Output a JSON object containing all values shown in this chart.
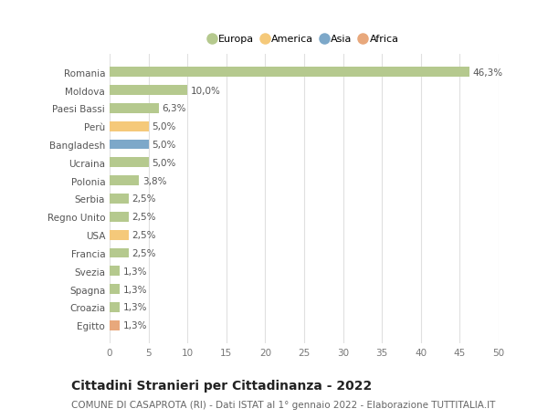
{
  "countries": [
    "Romania",
    "Moldova",
    "Paesi Bassi",
    "Perù",
    "Bangladesh",
    "Ucraina",
    "Polonia",
    "Serbia",
    "Regno Unito",
    "USA",
    "Francia",
    "Svezia",
    "Spagna",
    "Croazia",
    "Egitto"
  ],
  "values": [
    46.3,
    10.0,
    6.3,
    5.0,
    5.0,
    5.0,
    3.8,
    2.5,
    2.5,
    2.5,
    2.5,
    1.3,
    1.3,
    1.3,
    1.3
  ],
  "labels": [
    "46,3%",
    "10,0%",
    "6,3%",
    "5,0%",
    "5,0%",
    "5,0%",
    "3,8%",
    "2,5%",
    "2,5%",
    "2,5%",
    "2,5%",
    "1,3%",
    "1,3%",
    "1,3%",
    "1,3%"
  ],
  "colors": [
    "#b5c98e",
    "#b5c98e",
    "#b5c98e",
    "#f5c97a",
    "#7da8c9",
    "#b5c98e",
    "#b5c98e",
    "#b5c98e",
    "#b5c98e",
    "#f5c97a",
    "#b5c98e",
    "#b5c98e",
    "#b5c98e",
    "#b5c98e",
    "#e8a87c"
  ],
  "legend_labels": [
    "Europa",
    "America",
    "Asia",
    "Africa"
  ],
  "legend_colors": [
    "#b5c98e",
    "#f5c97a",
    "#7da8c9",
    "#e8a87c"
  ],
  "xlim": [
    0,
    50
  ],
  "xticks": [
    0,
    5,
    10,
    15,
    20,
    25,
    30,
    35,
    40,
    45,
    50
  ],
  "title": "Cittadini Stranieri per Cittadinanza - 2022",
  "subtitle": "COMUNE DI CASAPROTA (RI) - Dati ISTAT al 1° gennaio 2022 - Elaborazione TUTTITALIA.IT",
  "background_color": "#ffffff",
  "bar_height": 0.55,
  "grid_color": "#e0e0e0",
  "label_fontsize": 7.5,
  "tick_fontsize": 7.5,
  "title_fontsize": 10,
  "subtitle_fontsize": 7.5
}
